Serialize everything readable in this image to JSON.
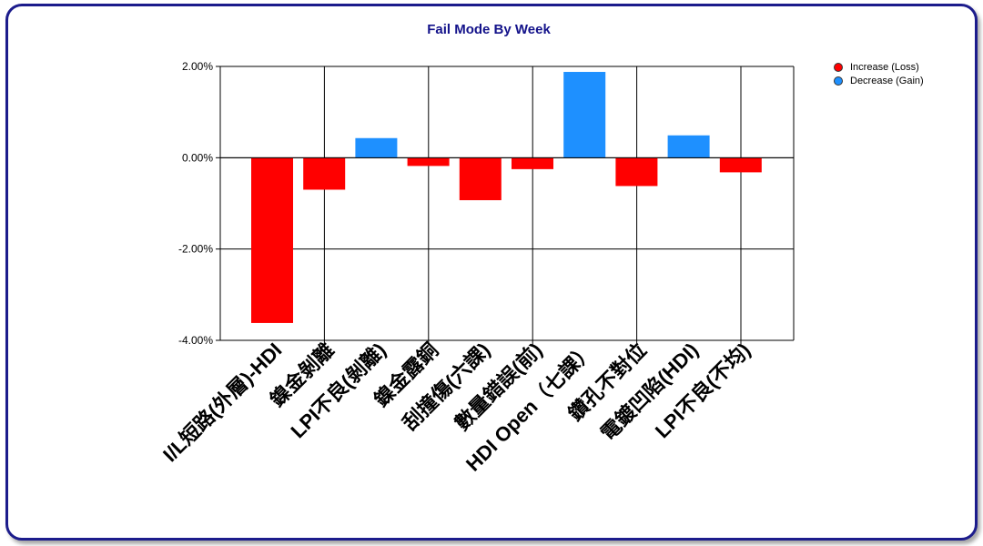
{
  "chart_data": {
    "type": "bar",
    "title": "Fail Mode By Week",
    "xlabel": "",
    "ylabel": "",
    "ylim": [
      -4,
      2
    ],
    "y_ticks": [
      "2.00%",
      "0.00%",
      "-2.00%",
      "-4.00%"
    ],
    "y_tick_values": [
      2,
      0,
      -2,
      -4
    ],
    "grid": true,
    "legend_position": "top-right",
    "categories": [
      "I/L短路(外層)-HDI",
      "鎳金剝離",
      "LPI不良(剝離)",
      "鎳金露銅",
      "刮撞傷(六課)",
      "數量錯誤(前)",
      "HDI Open（七課）",
      "鑽孔不對位",
      "電鍍凹陷(HDI)",
      "LPI不良(不均)"
    ],
    "values": [
      -3.62,
      -0.7,
      0.43,
      -0.18,
      -0.93,
      -0.25,
      1.88,
      -0.62,
      0.49,
      -0.32
    ],
    "series": [
      {
        "name": "Increase (Loss)",
        "color": "#ff0000"
      },
      {
        "name": "Decrease (Gain)",
        "color": "#1e90ff"
      }
    ]
  }
}
